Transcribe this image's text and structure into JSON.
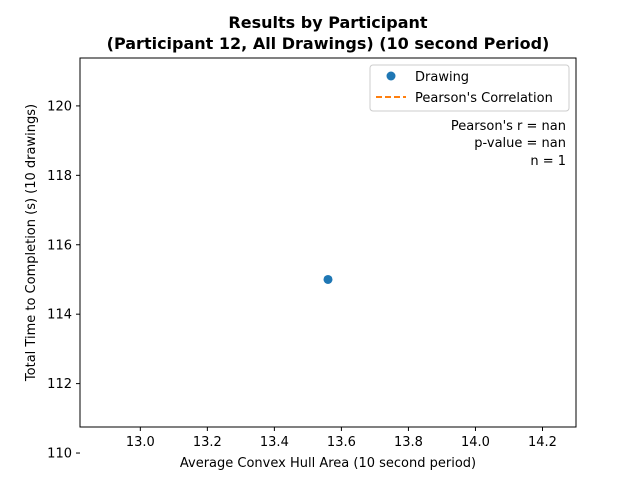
{
  "chart_data": {
    "type": "scatter",
    "title_lines": [
      "Results by Participant",
      "(Participant 12, All Drawings) (10 second Period)"
    ],
    "xlabel": "Average Convex Hull Area (10 second period)",
    "ylabel": "Total Time to Completion (s) (10 drawings)",
    "xlim": [
      12.82,
      14.3
    ],
    "ylim": [
      110.75,
      121.38
    ],
    "xticks": [
      13.0,
      13.2,
      13.4,
      13.6,
      13.8,
      14.0,
      14.2
    ],
    "xtick_labels": [
      "13.0",
      "13.2",
      "13.4",
      "13.6",
      "13.8",
      "14.0",
      "14.2"
    ],
    "yticks": [
      110,
      112,
      114,
      116,
      118,
      120
    ],
    "ytick_labels": [
      "110",
      "112",
      "114",
      "116",
      "118",
      "120"
    ],
    "series": [
      {
        "name": "Drawing",
        "kind": "marker",
        "color": "#1f77b4",
        "points": [
          {
            "x": 13.56,
            "y": 115.0
          }
        ]
      },
      {
        "name": "Pearson's Correlation",
        "kind": "dashed-line",
        "color": "#ff7f0e",
        "points": []
      }
    ],
    "legend_position": "top-right",
    "annotations": [
      "Pearson's r = nan",
      "p-value = nan",
      "n = 1"
    ],
    "grid": false
  }
}
